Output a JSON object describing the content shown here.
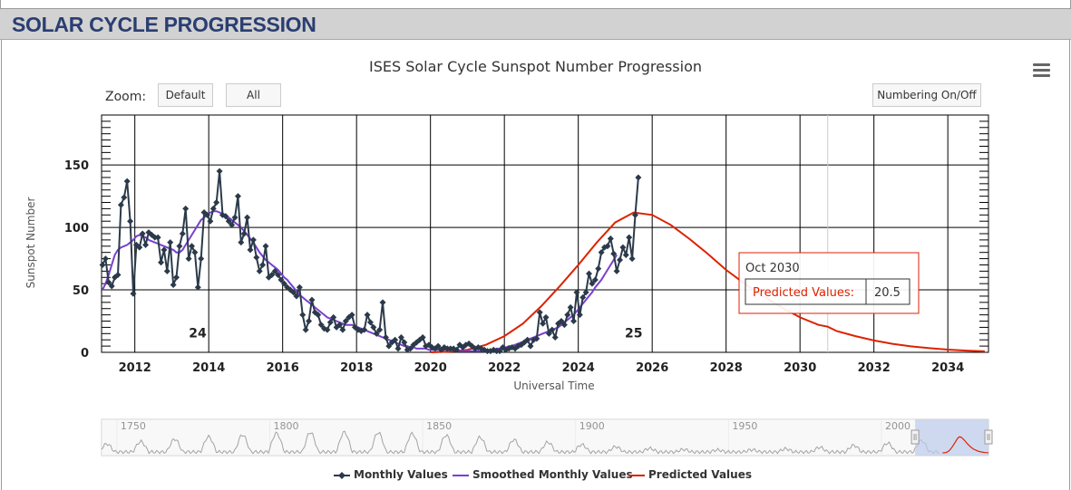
{
  "header": {
    "title": "SOLAR CYCLE PROGRESSION"
  },
  "toolbar": {
    "zoom_label": "Zoom:",
    "zoom_default": "Default",
    "zoom_all": "All",
    "numbering_toggle": "Numbering On/Off"
  },
  "icons": {
    "menu": "hamburger-menu-icon"
  },
  "colors": {
    "monthly": "#2b3a4a",
    "smoothed": "#7a3fd1",
    "predicted": "#dd2200",
    "header_text": "#2a3e72"
  },
  "tooltip": {
    "date": "Oct 2030",
    "label": "Predicted Values:",
    "value": "20.5"
  },
  "chart_data": {
    "type": "line",
    "title": "ISES Solar Cycle Sunspot Number Progression",
    "xlabel": "Universal Time",
    "ylabel": "Sunspot Number",
    "xlim": [
      2011.1,
      2035.1
    ],
    "ylim": [
      0,
      190
    ],
    "grid": true,
    "legend_placement": "bottom",
    "x_ticks": [
      "2012",
      "2014",
      "2016",
      "2018",
      "2020",
      "2022",
      "2024",
      "2026",
      "2028",
      "2030",
      "2032",
      "2034"
    ],
    "y_ticks": [
      "0",
      "50",
      "100",
      "150"
    ],
    "cycle_labels": [
      {
        "text": "24",
        "x": 2013.7,
        "y": 12
      },
      {
        "text": "25",
        "x": 2025.5,
        "y": 12
      }
    ],
    "series": [
      {
        "name": "Monthly Values",
        "x_start": 2011.125,
        "x_step": 0.08333,
        "values": [
          70,
          75,
          56,
          53,
          60,
          62,
          118,
          124,
          137,
          105,
          47,
          86,
          84,
          95,
          86,
          96,
          94,
          92,
          92,
          72,
          82,
          65,
          88,
          54,
          60,
          85,
          95,
          115,
          75,
          85,
          80,
          52,
          75,
          112,
          110,
          105,
          115,
          120,
          145,
          110,
          109,
          105,
          102,
          108,
          125,
          88,
          95,
          108,
          82,
          90,
          76,
          65,
          70,
          85,
          60,
          62,
          65,
          62,
          58,
          55,
          52,
          50,
          48,
          45,
          52,
          30,
          18,
          25,
          42,
          32,
          30,
          22,
          19,
          18,
          24,
          28,
          20,
          22,
          18,
          25,
          28,
          30,
          20,
          18,
          17,
          18,
          30,
          24,
          20,
          15,
          18,
          40,
          12,
          5,
          8,
          10,
          3,
          12,
          8,
          2,
          3,
          6,
          8,
          10,
          12,
          5,
          6,
          4,
          3,
          5,
          2,
          4,
          3,
          3,
          3,
          2,
          6,
          4,
          6,
          7,
          5,
          3,
          4,
          3,
          2,
          1,
          1,
          2,
          1,
          1,
          4,
          2,
          3,
          4,
          3,
          5,
          6,
          8,
          10,
          5,
          10,
          11,
          32,
          23,
          28,
          15,
          18,
          12,
          23,
          25,
          22,
          30,
          36,
          25,
          48,
          30,
          44,
          48,
          63,
          55,
          58,
          67,
          80,
          84,
          85,
          91,
          79,
          65,
          74,
          84,
          78,
          92,
          75,
          110,
          140
        ]
      },
      {
        "name": "Smoothed Monthly Values",
        "x_start": 2011.125,
        "x_step": 0.08333,
        "values": [
          50,
          55,
          62,
          70,
          78,
          82,
          84,
          85,
          86,
          88,
          90,
          93,
          94,
          93,
          92,
          90,
          89,
          88,
          87,
          86,
          85,
          84,
          83,
          82,
          80,
          80,
          82,
          86,
          90,
          94,
          98,
          102,
          106,
          108,
          110,
          112,
          113,
          113,
          112,
          111,
          110,
          108,
          106,
          104,
          102,
          100,
          97,
          94,
          91,
          88,
          84,
          80,
          77,
          74,
          72,
          70,
          68,
          66,
          63,
          60,
          58,
          55,
          52,
          49,
          46,
          44,
          42,
          40,
          38,
          36,
          34,
          32,
          30,
          28,
          27,
          26,
          25,
          24,
          23,
          22,
          22,
          22,
          21,
          20,
          19,
          18,
          17,
          16,
          15,
          14,
          13,
          12,
          11,
          10,
          9,
          8,
          7,
          6,
          5,
          5,
          4,
          4,
          3,
          3,
          3,
          3,
          2,
          2,
          2,
          2,
          2,
          2,
          2,
          2,
          2,
          1,
          1,
          1,
          1,
          1,
          1,
          1,
          1,
          1,
          1,
          2,
          2,
          2,
          3,
          3,
          4,
          4,
          5,
          5,
          6,
          7,
          8,
          9,
          10,
          11,
          12,
          13,
          14,
          15,
          16,
          17,
          18,
          19,
          20,
          22,
          24,
          26,
          28,
          30,
          33,
          36,
          39,
          42,
          45,
          48,
          52,
          55,
          58,
          62,
          66,
          70,
          74,
          78
        ]
      },
      {
        "name": "Predicted Values",
        "points": [
          [
            2020.0,
            0
          ],
          [
            2020.5,
            0.5
          ],
          [
            2021.0,
            2
          ],
          [
            2021.5,
            6
          ],
          [
            2022.0,
            13
          ],
          [
            2022.5,
            23
          ],
          [
            2023.0,
            37
          ],
          [
            2023.5,
            53
          ],
          [
            2024.0,
            70
          ],
          [
            2024.5,
            88
          ],
          [
            2025.0,
            104
          ],
          [
            2025.5,
            112
          ],
          [
            2026.0,
            110
          ],
          [
            2026.5,
            102
          ],
          [
            2027.0,
            91
          ],
          [
            2027.5,
            79
          ],
          [
            2028.0,
            66
          ],
          [
            2028.5,
            55
          ],
          [
            2029.0,
            45
          ],
          [
            2029.5,
            36
          ],
          [
            2030.0,
            28
          ],
          [
            2030.5,
            22
          ],
          [
            2030.75,
            20.5
          ],
          [
            2031.0,
            17
          ],
          [
            2031.5,
            13
          ],
          [
            2032.0,
            9.5
          ],
          [
            2032.5,
            6.8
          ],
          [
            2033.0,
            4.8
          ],
          [
            2033.5,
            3.3
          ],
          [
            2034.0,
            2.2
          ],
          [
            2034.5,
            1.4
          ],
          [
            2035.0,
            0.8
          ]
        ]
      }
    ]
  },
  "navigator": {
    "year_labels": [
      "1750",
      "1800",
      "1850",
      "1900",
      "1950",
      "2000"
    ],
    "xlim": [
      1745,
      2035
    ],
    "selection": [
      2011,
      2035
    ]
  }
}
